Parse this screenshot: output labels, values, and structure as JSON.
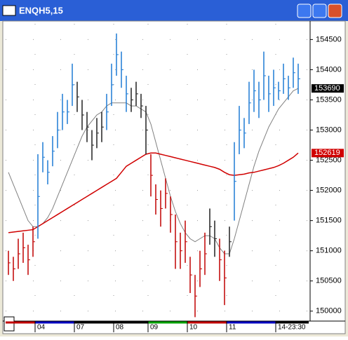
{
  "chart_data": {
    "type": "ohlc",
    "title": "ENQH5,15",
    "categories": [
      null,
      null,
      null,
      null,
      null,
      null,
      "04",
      null,
      null,
      null,
      null,
      null,
      null,
      null,
      "07",
      null,
      null,
      null,
      null,
      null,
      null,
      null,
      "08",
      null,
      null,
      null,
      null,
      null,
      null,
      "09",
      null,
      null,
      null,
      null,
      null,
      null,
      null,
      "10",
      null,
      null,
      null,
      null,
      null,
      null,
      null,
      "11",
      null,
      null,
      null,
      null,
      null,
      null,
      null,
      null,
      null,
      "14-23:30",
      null,
      null,
      null,
      null
    ],
    "band_colors": [
      "#c00000",
      "#0000c0",
      "#000000",
      "#000000",
      "#00a000",
      "#c00000",
      "#0000c0",
      "#000000"
    ],
    "high": [
      151000,
      150900,
      151200,
      151300,
      151100,
      151400,
      152600,
      152800,
      152500,
      152900,
      153300,
      153600,
      153500,
      154100,
      153800,
      153500,
      153300,
      153000,
      153200,
      153300,
      153600,
      154100,
      154600,
      154300,
      153900,
      153700,
      153800,
      153600,
      153400,
      152600,
      152100,
      152000,
      152200,
      151900,
      151600,
      151300,
      151500,
      150900,
      150600,
      151000,
      151300,
      151700,
      151500,
      151200,
      151000,
      151400,
      152800,
      153400,
      153200,
      153800,
      154000,
      153800,
      154300,
      153900,
      154000,
      153800,
      154100,
      153900,
      154200,
      154100
    ],
    "low": [
      150600,
      150500,
      150700,
      150800,
      150600,
      150900,
      151200,
      152300,
      152100,
      152400,
      152700,
      153000,
      153100,
      153400,
      153300,
      153000,
      152800,
      152500,
      152700,
      152800,
      153000,
      153400,
      153900,
      153700,
      153300,
      153300,
      153400,
      153200,
      152600,
      151900,
      151600,
      151400,
      151700,
      151300,
      150700,
      150700,
      150800,
      150300,
      149900,
      150400,
      150600,
      151100,
      150900,
      150500,
      150100,
      150900,
      151500,
      152600,
      152700,
      153100,
      153300,
      153200,
      153500,
      153300,
      153400,
      153500,
      153600,
      153500,
      153700,
      153600
    ],
    "bar_colors": [
      "#c00000",
      "#c00000",
      "#c00000",
      "#c00000",
      "#c00000",
      "#c00000",
      "#1e7bd4",
      "#1e7bd4",
      "#1e7bd4",
      "#1e7bd4",
      "#1e7bd4",
      "#1e7bd4",
      "#1e7bd4",
      "#1e7bd4",
      "#202020",
      "#202020",
      "#202020",
      "#202020",
      "#202020",
      "#202020",
      "#1e7bd4",
      "#1e7bd4",
      "#1e7bd4",
      "#1e7bd4",
      "#1e7bd4",
      "#202020",
      "#202020",
      "#202020",
      "#202020",
      "#c00000",
      "#c00000",
      "#c00000",
      "#c00000",
      "#c00000",
      "#c00000",
      "#c00000",
      "#c00000",
      "#c00000",
      "#c00000",
      "#c00000",
      "#c00000",
      "#202020",
      "#202020",
      "#c00000",
      "#c00000",
      "#202020",
      "#1e7bd4",
      "#1e7bd4",
      "#1e7bd4",
      "#1e7bd4",
      "#1e7bd4",
      "#1e7bd4",
      "#1e7bd4",
      "#1e7bd4",
      "#1e7bd4",
      "#1e7bd4",
      "#1e7bd4",
      "#1e7bd4",
      "#1e7bd4",
      "#1e7bd4"
    ],
    "lines": [
      {
        "color": "#808080",
        "label_color": "#000000",
        "values": [
          152300,
          152100,
          151900,
          151700,
          151500,
          151400,
          151400,
          151450,
          151550,
          151700,
          151900,
          152100,
          152300,
          152500,
          152700,
          152900,
          153050,
          153150,
          153250,
          153300,
          153400,
          153450,
          153450,
          153450,
          153450,
          153400,
          153400,
          153350,
          153300,
          153100,
          152800,
          152500,
          152200,
          151900,
          151650,
          151450,
          151300,
          151200,
          151150,
          151200,
          151250,
          151250,
          151200,
          151050,
          150950,
          150950,
          151200,
          151500,
          151800,
          152100,
          152400,
          152650,
          152850,
          153050,
          153200,
          153350,
          153450,
          153550,
          153650,
          153690
        ]
      },
      {
        "color": "#d00000",
        "label_color": "#d00000",
        "values": [
          151300,
          151310,
          151320,
          151330,
          151340,
          151350,
          151400,
          151450,
          151500,
          151550,
          151600,
          151650,
          151700,
          151750,
          151800,
          151850,
          151900,
          151950,
          152000,
          152050,
          152100,
          152150,
          152200,
          152300,
          152400,
          152450,
          152500,
          152550,
          152600,
          152620,
          152620,
          152600,
          152580,
          152560,
          152540,
          152520,
          152500,
          152480,
          152460,
          152440,
          152420,
          152400,
          152380,
          152350,
          152300,
          152260,
          152250,
          152260,
          152270,
          152290,
          152300,
          152320,
          152340,
          152360,
          152380,
          152410,
          152450,
          152500,
          152550,
          152619
        ]
      }
    ],
    "ylim": [
      149870,
      154760
    ],
    "yticks": [
      150000,
      150500,
      151000,
      151500,
      152000,
      152500,
      153000,
      153500,
      154000,
      154500
    ],
    "grid": true
  }
}
